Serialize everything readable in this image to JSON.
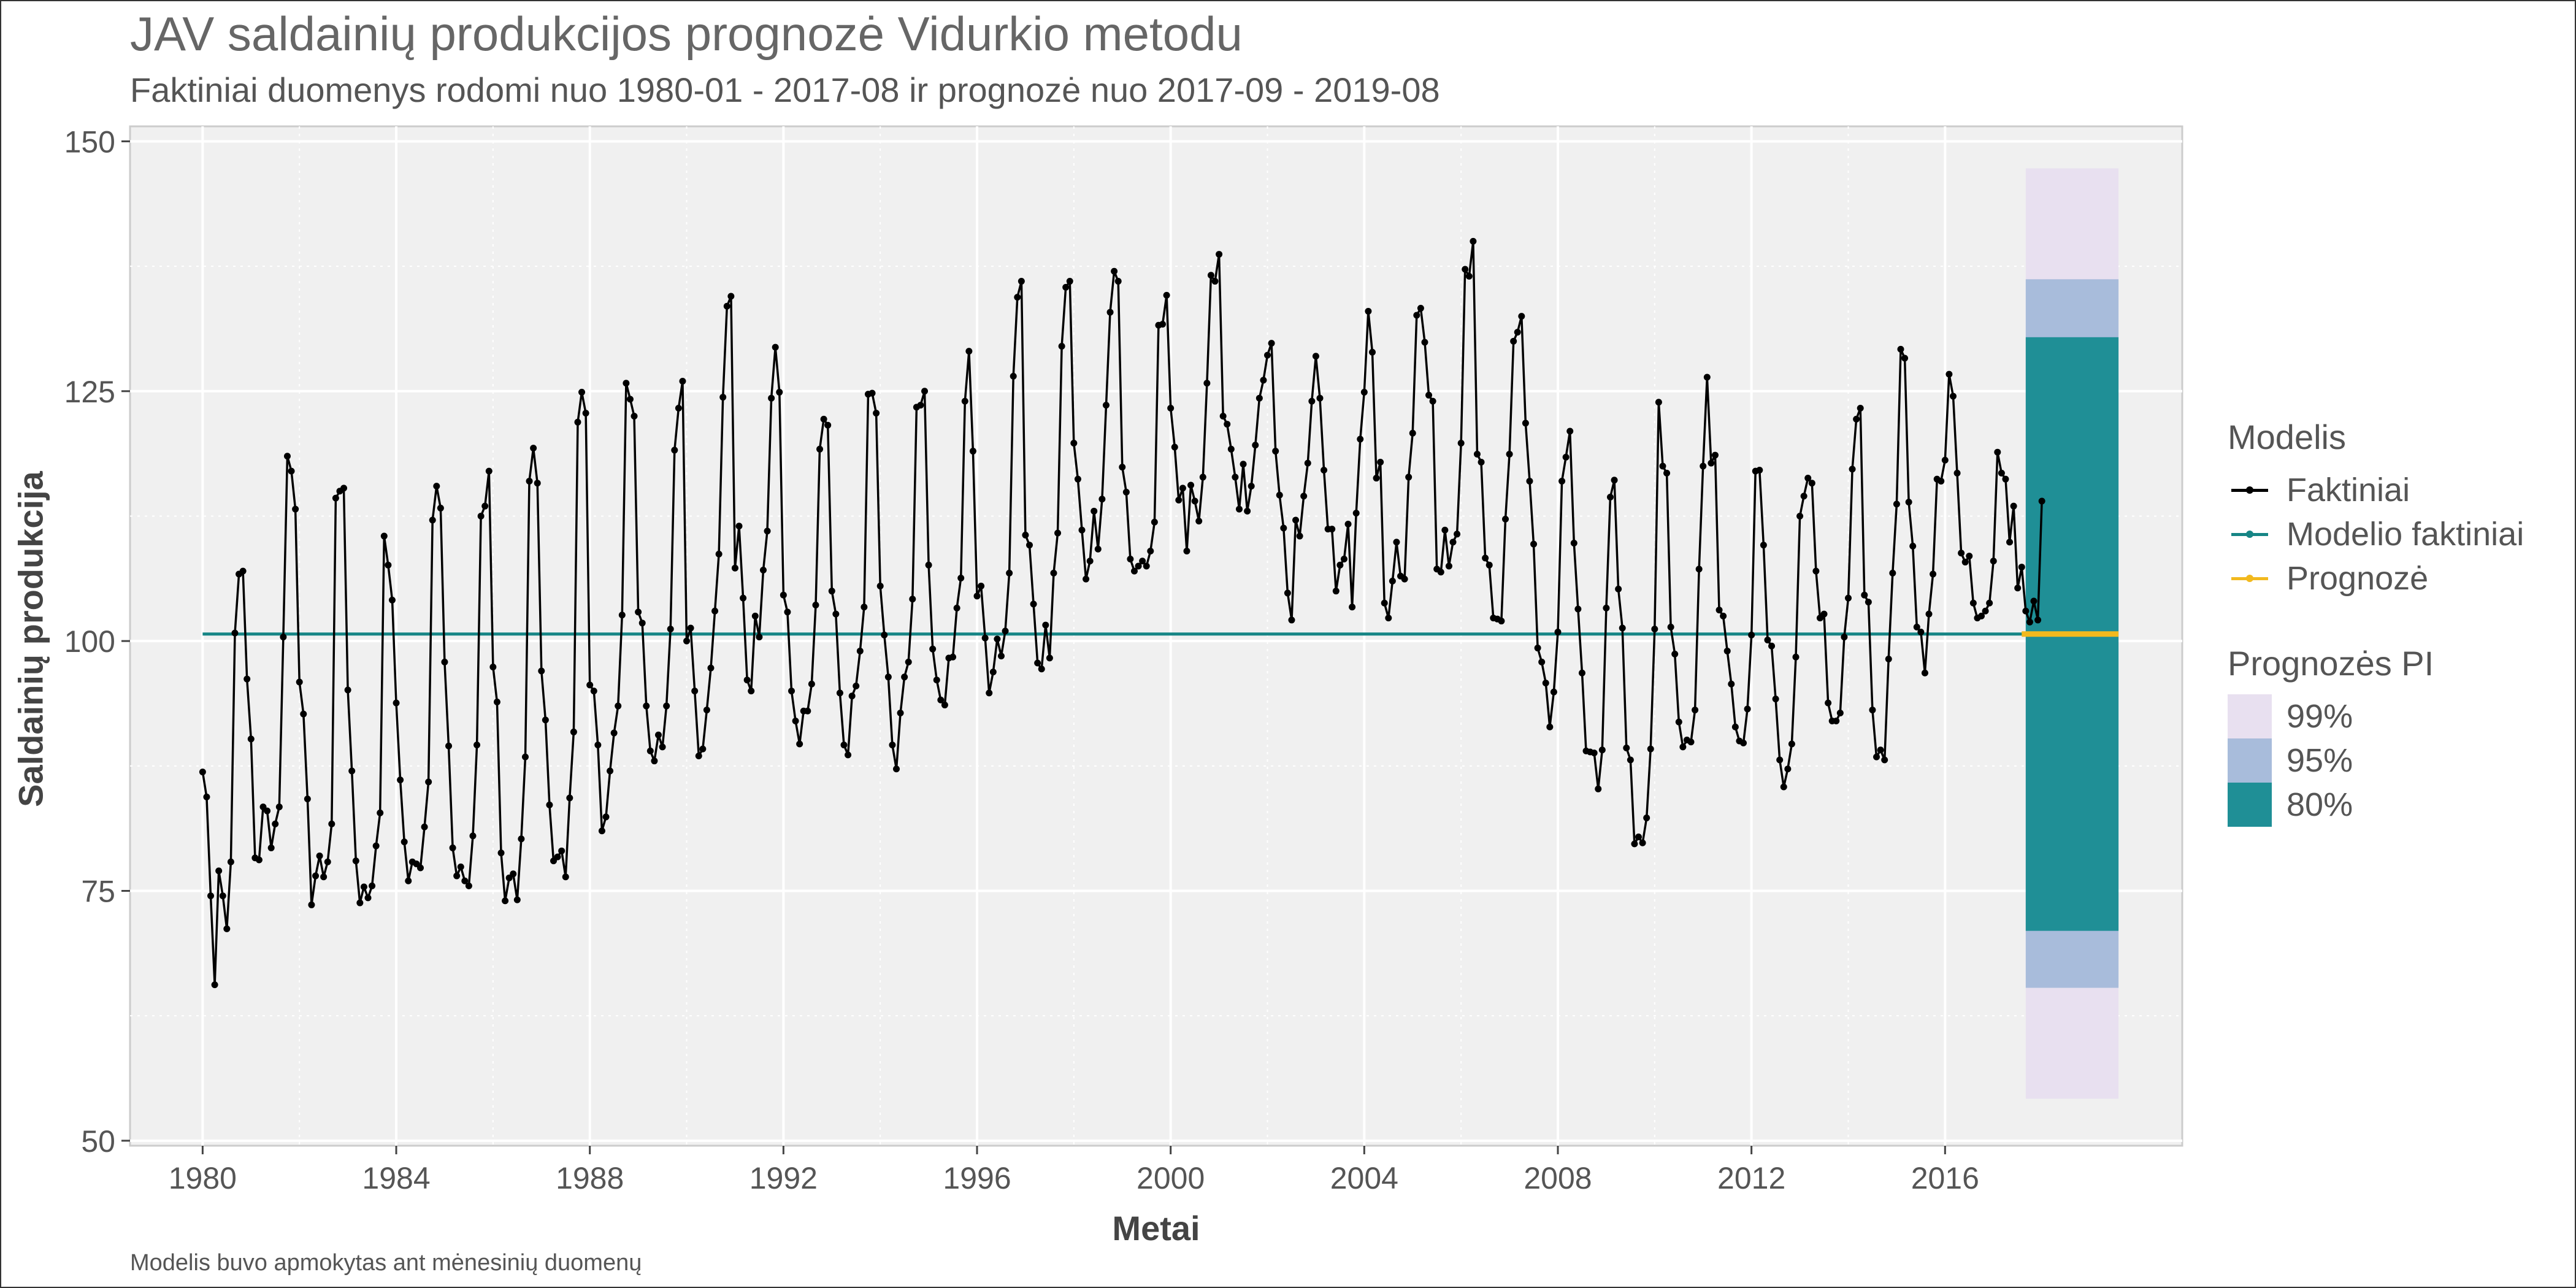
{
  "title": "JAV saldainių produkcijos prognozė Vidurkio metodu",
  "subtitle": "Faktiniai duomenys rodomi nuo 1980-01 - 2017-08 ir prognozė nuo 2017-09 - 2019-08",
  "caption": "Modelis buvo apmokytas ant mėnesinių duomenų",
  "legend": {
    "model_title": "Modelis",
    "model_items": [
      {
        "label": "Faktiniai",
        "color": "#000000"
      },
      {
        "label": "Modelio faktiniai",
        "color": "#168585"
      },
      {
        "label": "Prognozė",
        "color": "#F2B91E"
      }
    ],
    "pi_title": "Prognozės PI",
    "pi_items": [
      {
        "label": "99%",
        "color": "#E8E0F0"
      },
      {
        "label": "95%",
        "color": "#A8BCDB"
      },
      {
        "label": "80%",
        "color": "#1F8F96"
      }
    ]
  },
  "chart_data": {
    "type": "line",
    "xlabel": "Metai",
    "ylabel": "Saldainių produkcija",
    "xlim": [
      1978.5,
      2020.9
    ],
    "ylim": [
      49.5,
      151.5
    ],
    "x_ticks": [
      1980,
      1984,
      1988,
      1992,
      1996,
      2000,
      2004,
      2008,
      2012,
      2016
    ],
    "y_ticks": [
      50,
      75,
      100,
      125,
      150
    ],
    "grid": true,
    "legend_position": "right",
    "actual": {
      "name": "Faktiniai",
      "start": "1980-01",
      "frequency": "monthly",
      "values": [
        86.9,
        84.4,
        74.5,
        65.6,
        77.0,
        74.5,
        71.2,
        77.9,
        100.8,
        106.7,
        107.0,
        96.2,
        90.2,
        78.3,
        78.1,
        83.4,
        83.0,
        79.3,
        81.7,
        83.4,
        100.4,
        118.5,
        117.0,
        113.2,
        95.9,
        92.7,
        84.2,
        73.6,
        76.5,
        78.5,
        76.4,
        77.9,
        81.7,
        114.3,
        115.0,
        115.3,
        95.1,
        87.0,
        78.0,
        73.8,
        75.4,
        74.3,
        75.5,
        79.5,
        82.8,
        110.5,
        107.6,
        104.1,
        93.8,
        86.1,
        79.9,
        76.0,
        77.9,
        77.7,
        77.3,
        81.4,
        85.9,
        112.1,
        115.5,
        113.3,
        97.9,
        89.5,
        79.3,
        76.5,
        77.4,
        76.0,
        75.5,
        80.5,
        89.6,
        112.5,
        113.5,
        117.0,
        97.4,
        93.9,
        78.8,
        74.0,
        76.3,
        76.7,
        74.1,
        80.2,
        88.4,
        116.0,
        119.3,
        115.8,
        97.0,
        92.1,
        83.6,
        78.0,
        78.4,
        79.0,
        76.4,
        84.3,
        90.9,
        121.9,
        124.9,
        122.8,
        95.6,
        95.0,
        89.6,
        81.0,
        82.4,
        87.0,
        90.8,
        93.5,
        102.6,
        125.8,
        124.2,
        122.5,
        102.9,
        101.8,
        93.5,
        89.0,
        88.0,
        90.6,
        89.4,
        93.5,
        101.2,
        119.1,
        123.3,
        126.0,
        100.0,
        101.3,
        95.0,
        88.5,
        89.2,
        93.1,
        97.3,
        103.0,
        108.7,
        124.4,
        133.5,
        134.5,
        107.3,
        111.5,
        104.3,
        96.1,
        95.0,
        102.5,
        100.4,
        107.1,
        111.0,
        124.3,
        129.4,
        124.9,
        104.6,
        102.9,
        95.0,
        92.0,
        89.7,
        93.0,
        93.0,
        95.7,
        103.6,
        119.2,
        122.2,
        121.6,
        105.0,
        102.7,
        94.8,
        89.6,
        88.6,
        94.5,
        95.5,
        99.0,
        103.4,
        124.7,
        124.8,
        122.8,
        105.5,
        100.6,
        96.4,
        89.6,
        87.2,
        92.8,
        96.4,
        97.9,
        104.2,
        123.4,
        123.6,
        125.0,
        107.6,
        99.2,
        96.1,
        94.1,
        93.6,
        98.3,
        98.4,
        103.3,
        106.3,
        124.0,
        129.0,
        119.0,
        104.5,
        105.5,
        100.3,
        94.8,
        96.9,
        100.2,
        98.5,
        101.0,
        106.8,
        126.5,
        134.4,
        136.0,
        110.6,
        109.6,
        103.7,
        97.8,
        97.2,
        101.6,
        98.3,
        106.8,
        110.8,
        129.5,
        135.4,
        136.0,
        119.8,
        116.2,
        111.1,
        106.2,
        108.0,
        113.0,
        109.2,
        114.2,
        123.6,
        132.9,
        137.0,
        136.0,
        117.4,
        114.9,
        108.2,
        107.0,
        107.5,
        108.0,
        107.5,
        109.0,
        111.9,
        131.6,
        131.7,
        134.6,
        123.3,
        119.4,
        114.1,
        115.3,
        109.0,
        115.6,
        114.0,
        112.0,
        116.4,
        125.8,
        136.6,
        136.0,
        138.7,
        122.5,
        121.7,
        119.2,
        116.4,
        113.2,
        117.7,
        113.0,
        115.5,
        119.6,
        124.3,
        126.1,
        128.6,
        129.8,
        119.0,
        114.6,
        111.3,
        104.8,
        102.1,
        112.1,
        110.5,
        114.5,
        117.8,
        124.0,
        128.5,
        124.3,
        117.1,
        111.2,
        111.2,
        105.0,
        107.6,
        108.2,
        111.7,
        103.4,
        112.8,
        120.2,
        124.9,
        133.0,
        128.9,
        116.3,
        117.9,
        103.8,
        102.3,
        106.0,
        109.9,
        106.5,
        106.2,
        116.4,
        120.8,
        132.6,
        133.3,
        129.9,
        124.6,
        124.0,
        107.2,
        106.9,
        111.1,
        107.5,
        109.9,
        110.7,
        119.8,
        137.2,
        136.5,
        140.0,
        118.7,
        117.9,
        108.3,
        107.6,
        102.3,
        102.2,
        102.0,
        112.2,
        118.7,
        130.0,
        130.9,
        132.5,
        121.8,
        116.0,
        109.7,
        99.3,
        97.9,
        95.8,
        91.4,
        94.9,
        100.9,
        116.0,
        118.4,
        121.0,
        109.8,
        103.2,
        96.8,
        89.0,
        88.9,
        88.8,
        85.2,
        89.1,
        103.3,
        114.4,
        116.1,
        105.2,
        101.3,
        89.3,
        88.1,
        79.7,
        80.4,
        79.8,
        82.3,
        89.2,
        101.2,
        123.9,
        117.5,
        116.8,
        101.4,
        98.7,
        91.9,
        89.4,
        90.1,
        89.9,
        93.1,
        107.2,
        117.5,
        126.4,
        117.8,
        118.6,
        103.1,
        102.5,
        99.0,
        95.7,
        91.4,
        90.0,
        89.8,
        93.2,
        100.6,
        117.0,
        117.1,
        109.6,
        100.1,
        99.5,
        94.2,
        88.1,
        85.4,
        87.2,
        89.7,
        98.4,
        112.5,
        114.5,
        116.3,
        115.8,
        107.0,
        102.3,
        102.7,
        93.8,
        92.0,
        92.0,
        92.8,
        100.4,
        104.3,
        117.2,
        122.2,
        123.3,
        104.6,
        103.9,
        93.1,
        88.4,
        89.1,
        88.1,
        98.2,
        106.8,
        113.7,
        129.2,
        128.3,
        113.9,
        109.5,
        101.4,
        100.9,
        96.8,
        102.7,
        106.7,
        116.2,
        116.0,
        118.1,
        126.7,
        124.5,
        116.8,
        108.8,
        107.9,
        108.5,
        103.8,
        102.3,
        102.5,
        103.0,
        103.8,
        108.0,
        118.9,
        116.8,
        116.2,
        109.9,
        113.5,
        105.3,
        107.4,
        103.0,
        101.9,
        104.0,
        102.1,
        114.0
      ]
    },
    "fitted": {
      "name": "Modelio faktiniai",
      "value": 100.7
    },
    "forecast": {
      "name": "Prognozė",
      "start": "2017-09",
      "end": "2019-08",
      "mean": 100.7,
      "intervals": [
        {
          "level": "99%",
          "lower": 54.2,
          "upper": 147.3
        },
        {
          "level": "95%",
          "lower": 65.3,
          "upper": 136.2
        },
        {
          "level": "80%",
          "lower": 71.0,
          "upper": 130.4
        }
      ]
    }
  }
}
